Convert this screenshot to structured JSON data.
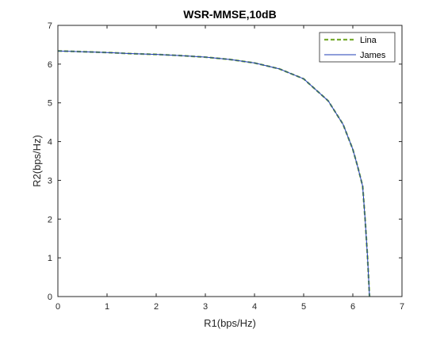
{
  "chart_data": {
    "type": "line",
    "title": "WSR-MMSE,10dB",
    "xlabel": "R1(bps/Hz)",
    "ylabel": "R2(bps/Hz)",
    "xlim": [
      0,
      7
    ],
    "ylim": [
      0,
      7
    ],
    "xticks": [
      0,
      1,
      2,
      3,
      4,
      5,
      6,
      7
    ],
    "yticks": [
      0,
      1,
      2,
      3,
      4,
      5,
      6,
      7
    ],
    "grid": false,
    "legend_position": "top-right",
    "series": [
      {
        "name": "Lina",
        "color": "#77ac30",
        "line_style": "dashed",
        "x": [
          0,
          0.5,
          1.0,
          1.5,
          2.0,
          2.5,
          3.0,
          3.5,
          4.0,
          4.5,
          5.0,
          5.5,
          5.8,
          6.0,
          6.1,
          6.2,
          6.25,
          6.3,
          6.34
        ],
        "y": [
          6.34,
          6.32,
          6.3,
          6.27,
          6.25,
          6.22,
          6.18,
          6.12,
          6.03,
          5.88,
          5.62,
          5.05,
          4.45,
          3.8,
          3.35,
          2.85,
          2.0,
          1.0,
          0
        ]
      },
      {
        "name": "James",
        "color": "#1f3cb4",
        "line_style": "solid",
        "x": [
          0,
          0.5,
          1.0,
          1.5,
          2.0,
          2.5,
          3.0,
          3.5,
          4.0,
          4.5,
          5.0,
          5.5,
          5.8,
          6.0,
          6.1,
          6.2,
          6.25,
          6.3,
          6.34
        ],
        "y": [
          6.34,
          6.32,
          6.3,
          6.27,
          6.25,
          6.22,
          6.18,
          6.12,
          6.03,
          5.88,
          5.62,
          5.05,
          4.45,
          3.8,
          3.35,
          2.85,
          2.0,
          1.0,
          0
        ]
      }
    ]
  }
}
